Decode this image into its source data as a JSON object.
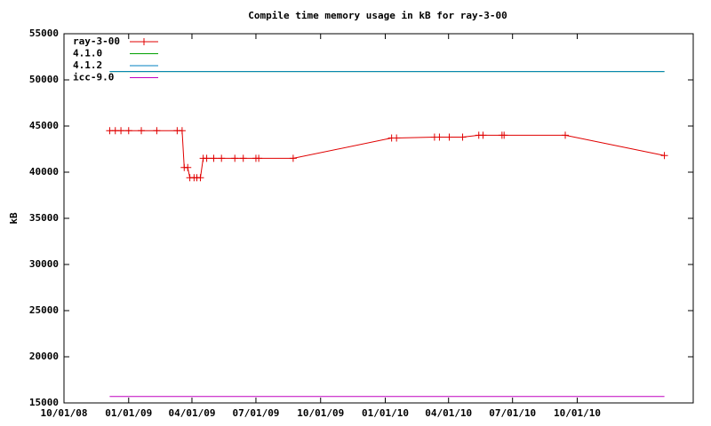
{
  "chart_data": {
    "type": "line",
    "title": "Compile time memory usage in kB for ray-3-00",
    "y_label": "kB",
    "xlim": [
      "2008-10-01",
      "2011-03-15"
    ],
    "xticks": [
      {
        "value": "2008-10-01",
        "label": "10/01/08"
      },
      {
        "value": "2009-01-01",
        "label": "01/01/09"
      },
      {
        "value": "2009-04-01",
        "label": "04/01/09"
      },
      {
        "value": "2009-07-01",
        "label": "07/01/09"
      },
      {
        "value": "2009-10-01",
        "label": "10/01/09"
      },
      {
        "value": "2010-01-01",
        "label": "01/01/10"
      },
      {
        "value": "2010-04-01",
        "label": "04/01/10"
      },
      {
        "value": "2010-07-01",
        "label": "07/01/10"
      },
      {
        "value": "2010-10-01",
        "label": "10/01/10"
      }
    ],
    "ylim": [
      15000,
      55000
    ],
    "yticks": [
      15000,
      20000,
      25000,
      30000,
      35000,
      40000,
      45000,
      50000,
      55000
    ],
    "legend": "top-left",
    "series": [
      {
        "name": "ray-3-00",
        "color": "#e00000",
        "markers": true,
        "x": [
          "2008-12-05",
          "2008-12-13",
          "2008-12-21",
          "2009-01-01",
          "2009-01-19",
          "2009-02-10",
          "2009-03-11",
          "2009-03-18",
          "2009-03-21",
          "2009-03-26",
          "2009-03-29",
          "2009-04-04",
          "2009-04-08",
          "2009-04-13",
          "2009-04-17",
          "2009-04-22",
          "2009-05-02",
          "2009-05-13",
          "2009-06-01",
          "2009-06-13",
          "2009-07-01",
          "2009-07-05",
          "2009-08-23",
          "2010-01-10",
          "2010-01-17",
          "2010-03-12",
          "2010-03-19",
          "2010-04-02",
          "2010-04-21",
          "2010-05-14",
          "2010-05-20",
          "2010-06-16",
          "2010-06-19",
          "2010-09-14",
          "2011-02-02"
        ],
        "values": [
          44500,
          44500,
          44500,
          44500,
          44500,
          44500,
          44500,
          44500,
          40500,
          40500,
          39400,
          39400,
          39400,
          39400,
          41500,
          41500,
          41500,
          41500,
          41500,
          41500,
          41500,
          41500,
          41500,
          43700,
          43700,
          43800,
          43800,
          43800,
          43800,
          44000,
          44000,
          44000,
          44000,
          44000,
          41800
        ]
      },
      {
        "name": "4.1.0",
        "color": "#00a000",
        "markers": false,
        "x": [
          "2008-12-05",
          "2011-02-02"
        ],
        "values": [
          50900,
          50900
        ]
      },
      {
        "name": "4.1.2",
        "color": "#0080c0",
        "markers": false,
        "x": [
          "2008-12-05",
          "2011-02-02"
        ],
        "values": [
          50900,
          50900
        ]
      },
      {
        "name": "icc-9.0",
        "color": "#c000c0",
        "markers": false,
        "x": [
          "2008-12-05",
          "2011-02-02"
        ],
        "values": [
          15700,
          15700
        ]
      }
    ]
  }
}
